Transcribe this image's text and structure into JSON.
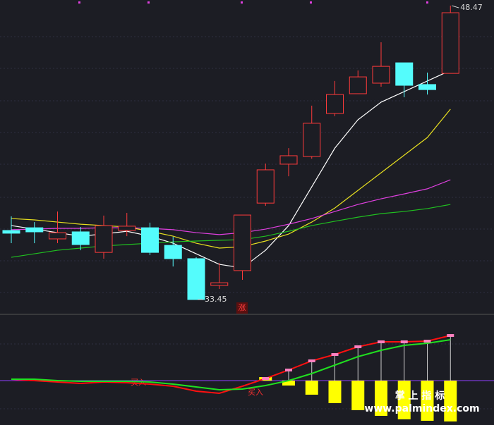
{
  "chart_data": [
    {
      "type": "candlestick",
      "open": [
        36.98,
        37.12,
        36.55,
        36.91,
        35.86,
        36.98,
        37.12,
        36.22,
        35.54,
        34.17,
        34.93,
        38.38,
        40.37,
        40.76,
        42.96,
        43.97,
        44.51,
        45.55,
        44.44,
        45.01
      ],
      "high": [
        37.7,
        37.41,
        37.95,
        37.16,
        37.74,
        37.88,
        37.38,
        36.66,
        35.61,
        35.32,
        37.77,
        40.4,
        41.19,
        43.36,
        44.62,
        45.16,
        46.6,
        45.55,
        45.05,
        48.47
      ],
      "low": [
        36.33,
        36.33,
        36.33,
        35.97,
        35.54,
        36.69,
        35.72,
        35.14,
        33.45,
        33.99,
        34.46,
        38.24,
        39.75,
        40.65,
        42.82,
        43.97,
        44.33,
        43.79,
        43.93,
        45.01
      ],
      "close": [
        36.84,
        36.91,
        36.87,
        36.26,
        37.23,
        37.2,
        35.86,
        35.54,
        33.45,
        34.31,
        37.77,
        40.08,
        40.8,
        42.46,
        43.93,
        44.83,
        45.37,
        44.4,
        44.18,
        48.11
      ],
      "high_labels": [
        null,
        null,
        null,
        null,
        null,
        null,
        null,
        null,
        null,
        null,
        null,
        null,
        null,
        null,
        null,
        null,
        null,
        null,
        null,
        "48.47"
      ],
      "low_labels": [
        null,
        null,
        null,
        null,
        null,
        null,
        null,
        null,
        "33.45",
        null,
        null,
        null,
        null,
        null,
        null,
        null,
        null,
        null,
        null,
        null
      ],
      "up_color": "#ff3b3b",
      "down_color": "#54fcfc",
      "ylim": [
        32.73,
        48.76
      ],
      "signal": "涨",
      "overlays": [
        {
          "color": "#ffffff",
          "values": [
            37.23,
            37.05,
            36.87,
            36.69,
            36.8,
            36.94,
            36.69,
            36.33,
            35.79,
            35.25,
            35.07,
            35.97,
            37.23,
            39.21,
            41.19,
            42.64,
            43.54,
            44.08,
            44.62,
            45.16
          ]
        },
        {
          "color": "#e8e020",
          "values": [
            37.59,
            37.52,
            37.41,
            37.3,
            37.23,
            37.16,
            36.94,
            36.69,
            36.33,
            36.08,
            36.15,
            36.44,
            36.8,
            37.41,
            38.13,
            39.03,
            39.93,
            40.83,
            41.73,
            43.18
          ]
        },
        {
          "color": "#e040e0",
          "values": [
            37.02,
            37.05,
            37.09,
            37.09,
            37.12,
            37.12,
            37.09,
            37.02,
            36.87,
            36.77,
            36.87,
            37.05,
            37.3,
            37.59,
            37.95,
            38.31,
            38.6,
            38.85,
            39.11,
            39.57
          ]
        },
        {
          "color": "#20c020",
          "values": [
            35.61,
            35.79,
            35.97,
            36.08,
            36.19,
            36.26,
            36.33,
            36.4,
            36.44,
            36.48,
            36.51,
            36.69,
            36.94,
            37.23,
            37.45,
            37.66,
            37.84,
            37.95,
            38.1,
            38.31
          ]
        }
      ]
    },
    {
      "type": "macd",
      "ylim": [
        -63,
        93
      ],
      "bar_color": "#ffff00",
      "marker_color": "#ff80c0",
      "zero_color": "#9040ff",
      "signals": [
        "买入",
        "买入"
      ],
      "series": [
        {
          "color": "#ff1010",
          "values": [
            2,
            0,
            -2,
            -4,
            -2,
            -3,
            -5,
            -8,
            -15,
            -18,
            -8,
            3,
            15,
            28,
            37,
            48,
            55,
            55,
            56,
            64
          ]
        },
        {
          "color": "#20e020",
          "values": [
            2,
            2,
            0,
            -1,
            -1,
            -1,
            -2,
            -5,
            -9,
            -13,
            -12,
            -7,
            0,
            10,
            22,
            34,
            43,
            50,
            53,
            58
          ]
        }
      ],
      "bars": [
        null,
        null,
        null,
        null,
        null,
        null,
        null,
        null,
        null,
        null,
        null,
        5,
        -7,
        -20,
        -32,
        -42,
        -50,
        -55,
        -57,
        -58
      ]
    }
  ],
  "watermark": {
    "title": "掌 上 指 标",
    "url": "www.palmindex.com"
  }
}
